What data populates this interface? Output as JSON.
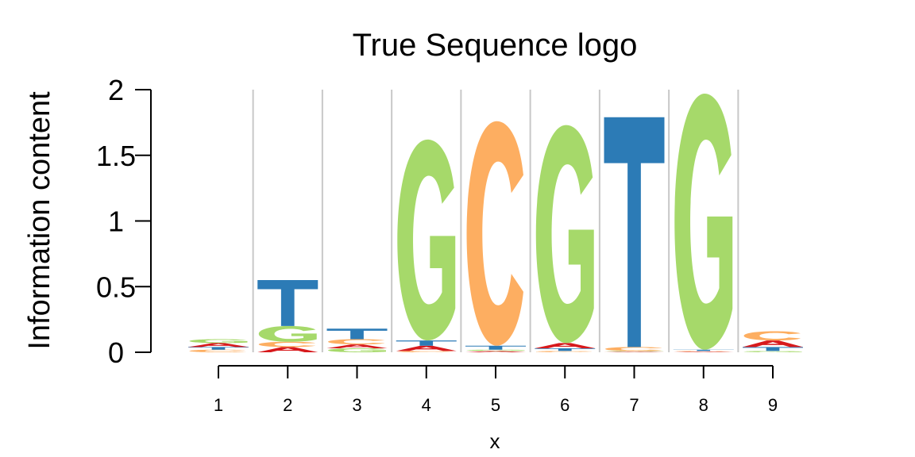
{
  "chart_data": {
    "type": "sequence-logo",
    "title": "True Sequence logo",
    "xlabel": "x",
    "ylabel": "Information content",
    "ylim": [
      0,
      2
    ],
    "yticks": [
      "0",
      "0.5",
      "1",
      "1.5",
      "2"
    ],
    "ytick_values": [
      0,
      0.5,
      1,
      1.5,
      2
    ],
    "positions": [
      "1",
      "2",
      "3",
      "4",
      "5",
      "6",
      "7",
      "8",
      "9"
    ],
    "colors": {
      "A": "#d7191c",
      "C": "#fdae61",
      "G": "#a6d96a",
      "T": "#2c7bb6"
    },
    "stacks": [
      [
        {
          "letter": "C",
          "height": 0.02
        },
        {
          "letter": "T",
          "height": 0.02
        },
        {
          "letter": "A",
          "height": 0.03
        },
        {
          "letter": "G",
          "height": 0.03
        }
      ],
      [
        {
          "letter": "A",
          "height": 0.04
        },
        {
          "letter": "C",
          "height": 0.04
        },
        {
          "letter": "G",
          "height": 0.12
        },
        {
          "letter": "T",
          "height": 0.35
        }
      ],
      [
        {
          "letter": "G",
          "height": 0.03
        },
        {
          "letter": "A",
          "height": 0.03
        },
        {
          "letter": "C",
          "height": 0.04
        },
        {
          "letter": "T",
          "height": 0.08
        }
      ],
      [
        {
          "letter": "C",
          "height": 0.01
        },
        {
          "letter": "A",
          "height": 0.04
        },
        {
          "letter": "T",
          "height": 0.04
        },
        {
          "letter": "G",
          "height": 1.53
        }
      ],
      [
        {
          "letter": "A",
          "height": 0.01
        },
        {
          "letter": "G",
          "height": 0.01
        },
        {
          "letter": "T",
          "height": 0.03
        },
        {
          "letter": "C",
          "height": 1.71
        }
      ],
      [
        {
          "letter": "C",
          "height": 0.01
        },
        {
          "letter": "T",
          "height": 0.02
        },
        {
          "letter": "A",
          "height": 0.04
        },
        {
          "letter": "G",
          "height": 1.66
        }
      ],
      [
        {
          "letter": "A",
          "height": 0.005
        },
        {
          "letter": "G",
          "height": 0.005
        },
        {
          "letter": "C",
          "height": 0.03
        },
        {
          "letter": "T",
          "height": 1.75
        }
      ],
      [
        {
          "letter": "A",
          "height": 0.005
        },
        {
          "letter": "C",
          "height": 0.005
        },
        {
          "letter": "T",
          "height": 0.01
        },
        {
          "letter": "G",
          "height": 1.95
        }
      ],
      [
        {
          "letter": "G",
          "height": 0.01
        },
        {
          "letter": "T",
          "height": 0.03
        },
        {
          "letter": "A",
          "height": 0.05
        },
        {
          "letter": "C",
          "height": 0.07
        }
      ]
    ]
  }
}
